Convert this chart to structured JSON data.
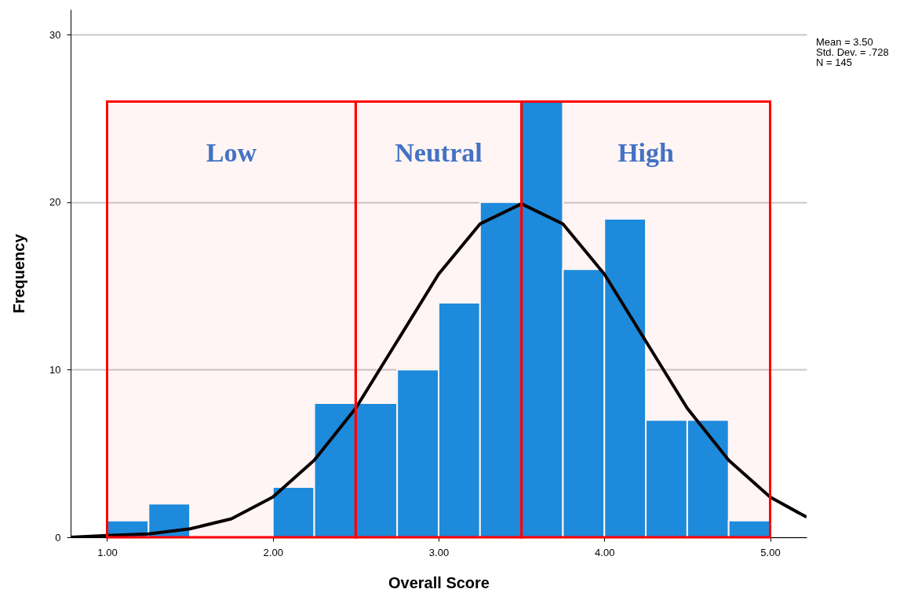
{
  "chart_data": {
    "type": "histogram",
    "xlabel": "Overall Score",
    "ylabel": "Frequency",
    "bins": [
      1.0,
      1.25,
      1.5,
      1.75,
      2.0,
      2.25,
      2.5,
      2.75,
      3.0,
      3.25,
      3.5,
      3.75,
      4.0,
      4.25,
      4.5,
      4.75,
      5.0
    ],
    "series": [
      {
        "type": "histogram",
        "color": "#1490e4",
        "values": [
          1,
          2,
          0,
          0,
          3,
          8,
          8,
          10,
          14,
          20,
          26,
          16,
          19,
          7,
          7,
          1
        ]
      },
      {
        "type": "line",
        "color": "#000000",
        "x": [
          0.78,
          1.0,
          1.25,
          1.5,
          1.75,
          2.0,
          2.25,
          2.5,
          2.75,
          3.0,
          3.25,
          3.5,
          3.75,
          4.0,
          4.25,
          4.5,
          4.75,
          5.0,
          5.22
        ],
        "values": [
          0.0,
          0.1,
          0.2,
          0.5,
          1.1,
          2.4,
          4.6,
          7.7,
          11.7,
          15.7,
          18.7,
          19.9,
          18.7,
          15.7,
          11.7,
          7.7,
          4.6,
          2.4,
          1.2
        ]
      }
    ],
    "xlim": [
      0.78,
      5.22
    ],
    "xticks": [
      {
        "value": 1,
        "label": "1.00"
      },
      {
        "value": 2,
        "label": "2.00"
      },
      {
        "value": 3,
        "label": "3.00"
      },
      {
        "value": 4,
        "label": "4.00"
      },
      {
        "value": 5,
        "label": "5.00"
      }
    ],
    "ylim": [
      0,
      31.5
    ],
    "yticks": [
      0,
      10,
      20,
      30
    ],
    "grid": "y",
    "bands": [
      {
        "axis": "x",
        "from": 1.0,
        "to": 2.5,
        "label": "Low",
        "color": "#ff0000"
      },
      {
        "axis": "x",
        "from": 2.5,
        "to": 3.5,
        "label": "Neutral",
        "color": "#ff0000"
      },
      {
        "axis": "x",
        "from": 3.5,
        "to": 5.0,
        "label": "High",
        "color": "#ff0000"
      }
    ],
    "annotations": [
      "Mean = 3.50",
      "Std. Dev. = .728",
      "N = 145"
    ]
  }
}
